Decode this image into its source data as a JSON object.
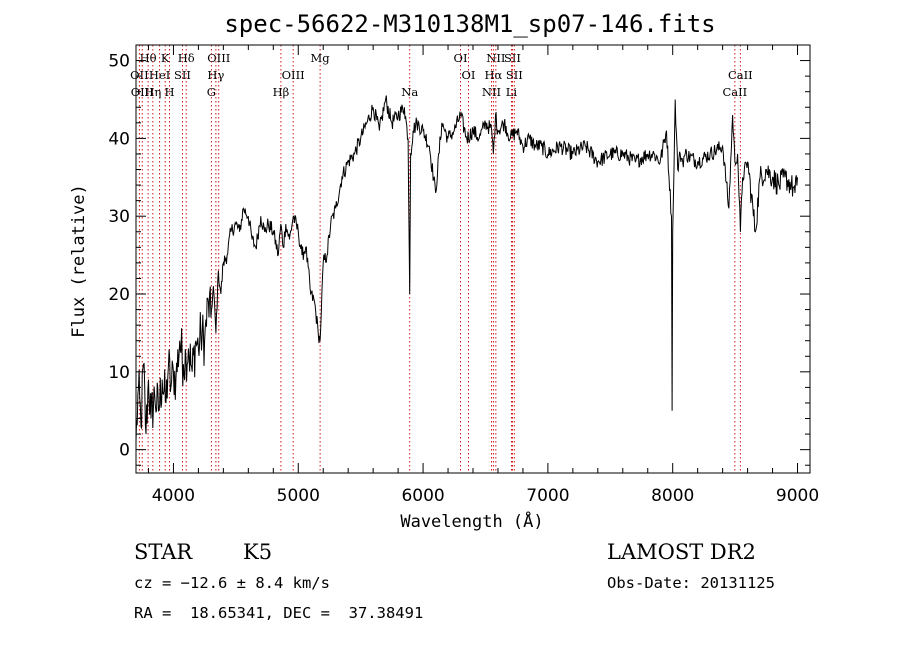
{
  "chart_data": {
    "type": "line",
    "title": "spec-56622-M310138M1_sp07-146.fits",
    "xlabel": "Wavelength (Å)",
    "ylabel": "Flux (relative)",
    "xlim": [
      3700,
      9100
    ],
    "ylim": [
      -3,
      52
    ],
    "xticks": [
      4000,
      5000,
      6000,
      7000,
      8000,
      9000
    ],
    "yticks": [
      0,
      10,
      20,
      30,
      40,
      50
    ],
    "grid": false,
    "line_color": "#000000",
    "marker_color": "#cc0000",
    "series": [
      {
        "x": [
          3700,
          3720,
          3740,
          3760,
          3780,
          3800,
          3820,
          3850,
          3880,
          3910,
          3940,
          3960,
          3980,
          4000,
          4020,
          4050,
          4080,
          4100,
          4120,
          4150,
          4180,
          4200,
          4220,
          4250,
          4280,
          4300,
          4320,
          4340,
          4360,
          4380,
          4400,
          4430,
          4460,
          4500,
          4530,
          4560,
          4600,
          4630,
          4660,
          4700,
          4730,
          4760,
          4800,
          4840,
          4860,
          4880,
          4900,
          4930,
          4960,
          5000,
          5030,
          5060,
          5100,
          5130,
          5160,
          5175,
          5185,
          5200,
          5230,
          5260,
          5300,
          5350,
          5400,
          5450,
          5500,
          5550,
          5600,
          5650,
          5700,
          5750,
          5800,
          5850,
          5880,
          5893,
          5900,
          5920,
          5950,
          6000,
          6050,
          6100,
          6150,
          6200,
          6250,
          6300,
          6350,
          6400,
          6450,
          6500,
          6550,
          6563,
          6580,
          6600,
          6650,
          6700,
          6750,
          6800,
          6850,
          6900,
          6950,
          7000,
          7100,
          7200,
          7300,
          7400,
          7500,
          7600,
          7700,
          7800,
          7850,
          7900,
          7950,
          7990,
          7995,
          8000,
          8010,
          8020,
          8040,
          8060,
          8080,
          8100,
          8200,
          8300,
          8400,
          8450,
          8480,
          8498,
          8520,
          8542,
          8560,
          8600,
          8662,
          8700,
          8750,
          8800,
          8850,
          8900,
          8950,
          8980,
          9000
        ],
        "y": [
          1,
          8,
          3,
          11,
          2,
          9,
          4,
          7,
          5,
          9,
          6,
          11,
          8,
          10,
          9,
          14,
          11,
          12,
          13,
          10,
          14,
          13,
          15,
          14,
          19,
          17,
          21,
          15,
          23,
          20,
          24,
          25,
          28,
          29,
          28,
          31,
          30,
          27,
          26,
          30,
          28,
          29,
          28,
          25,
          29,
          26,
          29,
          27,
          30,
          28,
          25,
          26,
          20,
          19,
          15,
          14,
          18,
          24,
          25,
          29,
          31,
          35,
          37,
          38,
          40,
          42,
          44,
          41,
          45,
          42,
          43,
          44,
          40,
          20,
          38,
          41,
          42,
          41,
          39,
          33,
          42,
          40,
          41,
          43,
          40,
          41,
          40,
          42,
          41,
          38,
          43,
          41,
          42,
          40,
          41,
          39,
          40,
          39,
          39,
          38,
          39,
          38,
          39,
          37,
          38,
          38,
          37,
          38,
          38,
          37,
          41,
          30,
          5,
          28,
          36,
          45,
          36,
          38,
          37,
          38,
          37,
          38,
          39,
          31,
          43,
          37,
          38,
          28,
          35,
          37,
          28,
          35,
          36,
          35,
          34,
          35,
          34,
          33,
          35
        ]
      }
    ],
    "spectral_lines": [
      {
        "label": "Hθ",
        "wave": 3797,
        "row": 0
      },
      {
        "label": "K",
        "wave": 3934,
        "row": 0
      },
      {
        "label": "Hδ",
        "wave": 4102,
        "row": 0
      },
      {
        "label": "OIII",
        "wave": 4363,
        "row": 0
      },
      {
        "label": "Mg",
        "wave": 5175,
        "row": 0
      },
      {
        "label": "OI",
        "wave": 6300,
        "row": 0
      },
      {
        "label": "NII",
        "wave": 6583,
        "row": 0
      },
      {
        "label": "SII",
        "wave": 6716,
        "row": 0
      },
      {
        "label": "OII",
        "wave": 3727,
        "row": 1
      },
      {
        "label": "HeI",
        "wave": 3889,
        "row": 1
      },
      {
        "label": "SII",
        "wave": 4072,
        "row": 1
      },
      {
        "label": "Hγ",
        "wave": 4340,
        "row": 1
      },
      {
        "label": "OIII",
        "wave": 4959,
        "row": 1
      },
      {
        "label": "OI",
        "wave": 6364,
        "row": 1
      },
      {
        "label": "Hα",
        "wave": 6563,
        "row": 1
      },
      {
        "label": "SII",
        "wave": 6731,
        "row": 1
      },
      {
        "label": "CaII",
        "wave": 8542,
        "row": 1
      },
      {
        "label": "OIII",
        "wave": 3750,
        "row": 2
      },
      {
        "label": "Hη",
        "wave": 3835,
        "row": 2
      },
      {
        "label": "H",
        "wave": 3969,
        "row": 2
      },
      {
        "label": "G",
        "wave": 4304,
        "row": 2
      },
      {
        "label": "Hβ",
        "wave": 4861,
        "row": 2
      },
      {
        "label": "Na",
        "wave": 5893,
        "row": 2
      },
      {
        "label": "NII",
        "wave": 6548,
        "row": 2
      },
      {
        "label": "Li",
        "wave": 6708,
        "row": 2
      },
      {
        "label": "CaII",
        "wave": 8498,
        "row": 2
      }
    ]
  },
  "info": {
    "object_class": "STAR",
    "subclass": "K5",
    "survey": "LAMOST DR2",
    "cz": "cz = −12.6 ± 8.4 km/s",
    "obs_date": "Obs-Date: 20131125",
    "coords": "RA =  18.65341, DEC =  37.38491"
  }
}
